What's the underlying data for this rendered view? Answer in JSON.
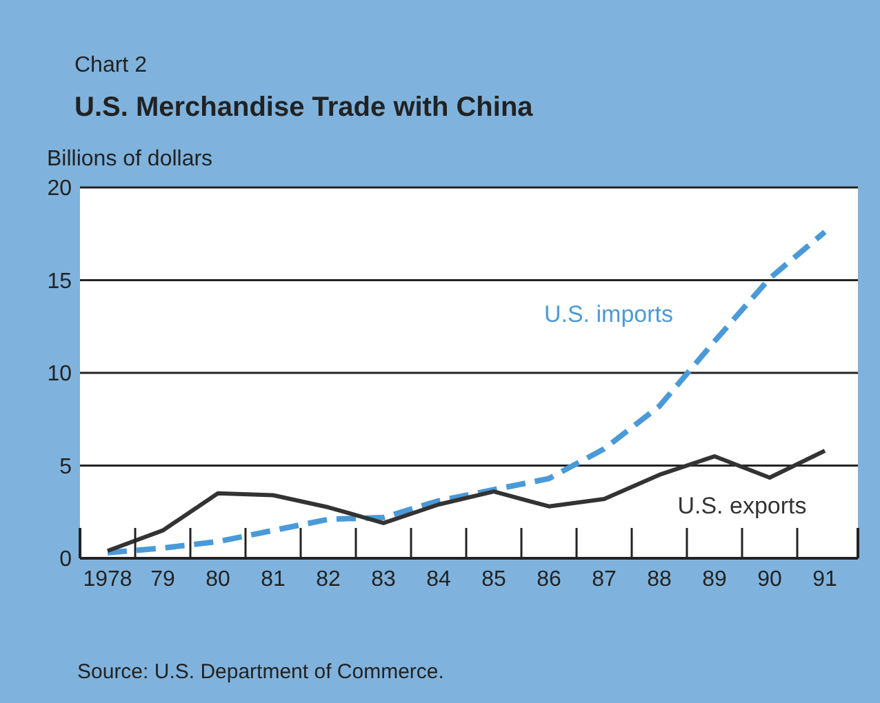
{
  "chart_data": {
    "type": "line",
    "subtitle": "Chart 2",
    "title": "U.S. Merchandise Trade with China",
    "ylabel": "Billions of dollars",
    "x": [
      1978,
      1979,
      1980,
      1981,
      1982,
      1983,
      1984,
      1985,
      1986,
      1987,
      1988,
      1989,
      1990,
      1991
    ],
    "series": [
      {
        "name": "U.S. imports",
        "color": "#4a9ad8",
        "line_style": "dashed",
        "values": [
          0.3,
          0.55,
          0.9,
          1.5,
          2.1,
          2.2,
          3.1,
          3.7,
          4.3,
          5.9,
          8.2,
          11.7,
          15.1,
          17.6
        ]
      },
      {
        "name": "U.S. exports",
        "color": "#333333",
        "line_style": "solid",
        "values": [
          0.4,
          1.5,
          3.5,
          3.4,
          2.75,
          1.9,
          2.9,
          3.6,
          2.8,
          3.2,
          4.5,
          5.5,
          4.35,
          5.8
        ]
      }
    ],
    "xlim": [
      1977.5,
      1991.6
    ],
    "xticks": [
      {
        "value": 1978,
        "label": "1978"
      },
      {
        "value": 1979,
        "label": "79"
      },
      {
        "value": 1980,
        "label": "80"
      },
      {
        "value": 1981,
        "label": "81"
      },
      {
        "value": 1982,
        "label": "82"
      },
      {
        "value": 1983,
        "label": "83"
      },
      {
        "value": 1984,
        "label": "84"
      },
      {
        "value": 1985,
        "label": "85"
      },
      {
        "value": 1986,
        "label": "86"
      },
      {
        "value": 1987,
        "label": "87"
      },
      {
        "value": 1988,
        "label": "88"
      },
      {
        "value": 1989,
        "label": "89"
      },
      {
        "value": 1990,
        "label": "90"
      },
      {
        "value": 1991,
        "label": "91"
      }
    ],
    "ylim": [
      0,
      20
    ],
    "yticks": [
      0,
      5,
      10,
      15,
      20
    ],
    "grid": "y",
    "legend": false,
    "marker": "none",
    "annotations": [
      "Source:  U.S. Department of Commerce."
    ]
  }
}
